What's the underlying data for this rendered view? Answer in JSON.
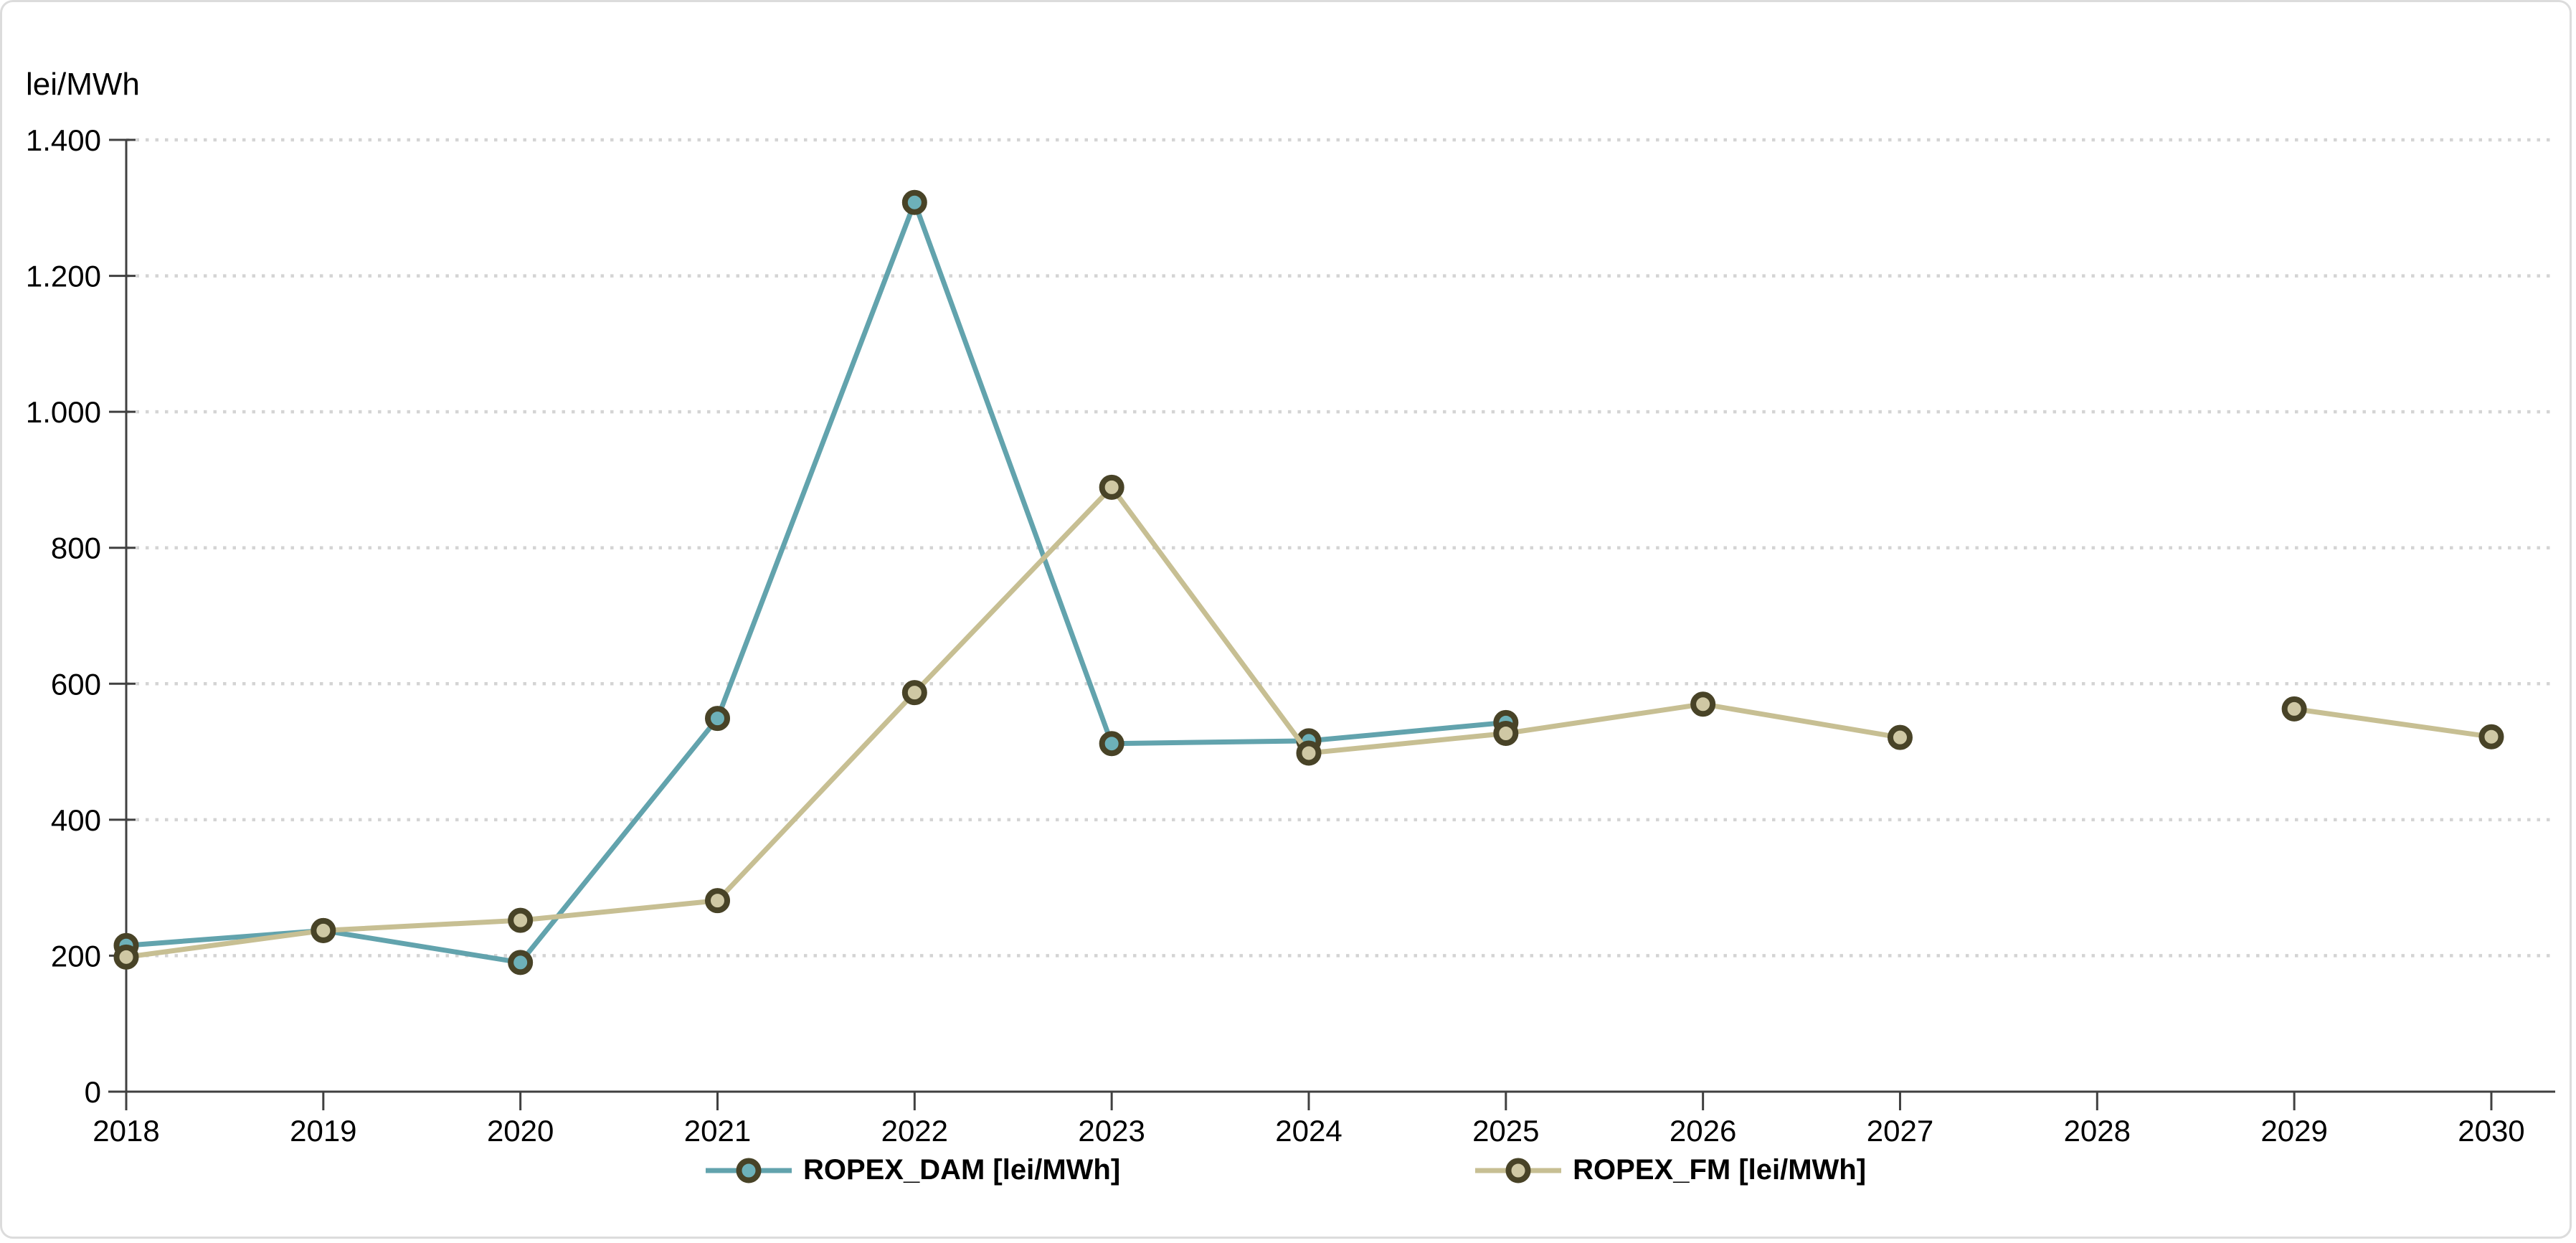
{
  "chart_data": {
    "type": "line",
    "title": "",
    "ylabel": "lei/MWh",
    "xlabel": "",
    "ylim": [
      0,
      1400
    ],
    "ytick_step": 200,
    "ytick_labels": [
      "0",
      "200",
      "400",
      "600",
      "800",
      "1.000",
      "1.200",
      "1.400"
    ],
    "grid": "horizontal-dotted",
    "legend_position": "bottom-center",
    "x": [
      2018,
      2019,
      2020,
      2021,
      2022,
      2023,
      2024,
      2025,
      2026,
      2027,
      2028,
      2029,
      2030
    ],
    "series": [
      {
        "name": "ROPEX_DAM [lei/MWh]",
        "line_color": "#62a3ad",
        "marker_fill": "#6db1b9",
        "marker_border": "#484327",
        "values": [
          215,
          237,
          190,
          549,
          1308,
          512,
          516,
          543,
          null,
          null,
          null,
          null,
          null
        ]
      },
      {
        "name": "ROPEX_FM [lei/MWh]",
        "line_color": "#c7bf93",
        "marker_fill": "#cfc8a4",
        "marker_border": "#484327",
        "values": [
          198,
          237,
          252,
          281,
          587,
          889,
          498,
          527,
          570,
          521,
          null,
          563,
          522
        ]
      }
    ]
  },
  "style_colors": {
    "gridline": "#d4d4d4",
    "axis": "#404040",
    "text": "#000000",
    "frame_border": "#dcdcdc",
    "background": "#ffffff"
  }
}
